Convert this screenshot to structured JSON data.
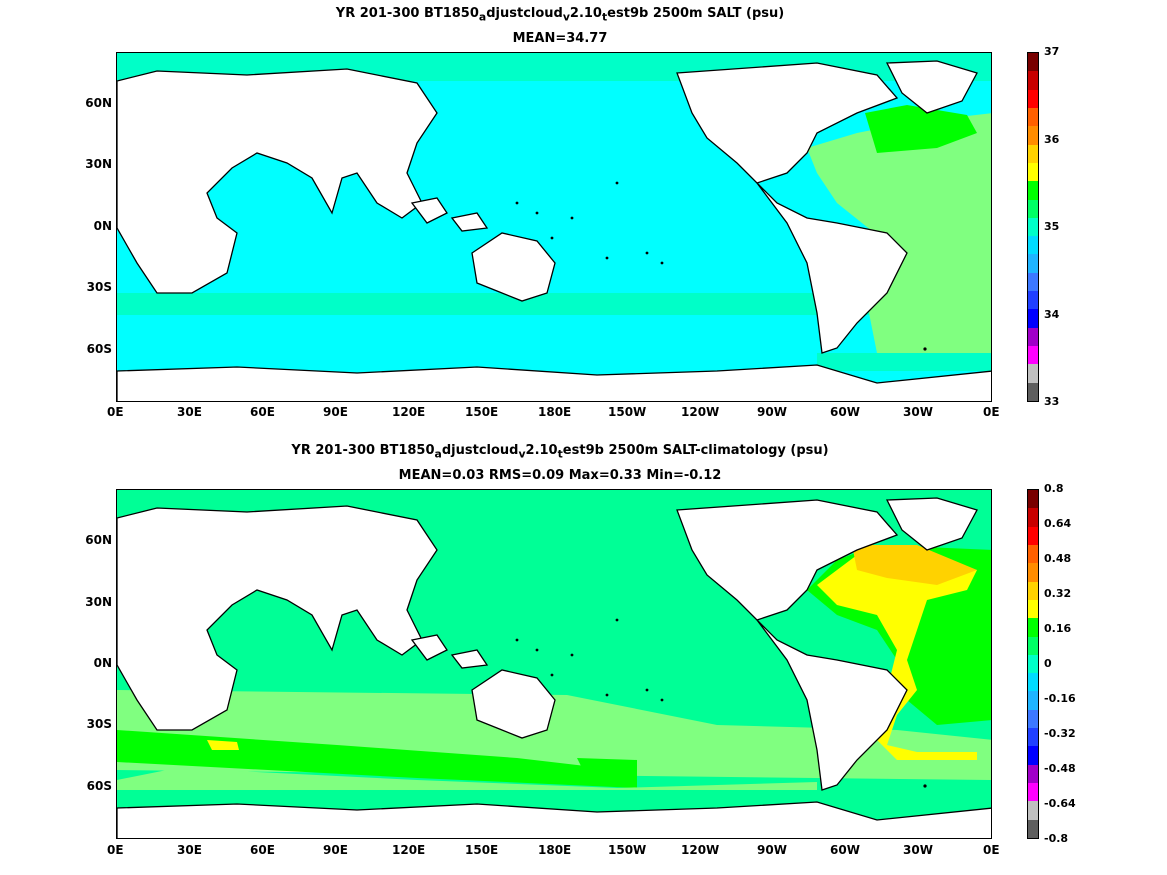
{
  "panel1": {
    "title_line1": "YR 201-300 BT1850",
    "title_sub_a": "a",
    "title_mid1": "djustcloud",
    "title_sub_v": "v",
    "title_mid2": "2.10",
    "title_sub_t": "t",
    "title_end": "est9b 2500m SALT (psu)",
    "title_line2": "MEAN=34.77",
    "colorbar_labels": [
      "37",
      "36",
      "35",
      "34",
      "33"
    ]
  },
  "panel2": {
    "title_line1": "YR 201-300 BT1850",
    "title_sub_a": "a",
    "title_mid1": "djustcloud",
    "title_sub_v": "v",
    "title_mid2": "2.10",
    "title_sub_t": "t",
    "title_end": "est9b 2500m SALT-climatology (psu)",
    "title_line2": "MEAN=0.03   RMS=0.09   Max=0.33   Min=-0.12",
    "colorbar_labels": [
      "0.8",
      "0.64",
      "0.48",
      "0.32",
      "0.16",
      "0",
      "-0.16",
      "-0.32",
      "-0.48",
      "-0.64",
      "-0.8"
    ]
  },
  "axes": {
    "lon_labels": [
      "0E",
      "30E",
      "60E",
      "90E",
      "120E",
      "150E",
      "180E",
      "150W",
      "120W",
      "90W",
      "60W",
      "30W",
      "0E"
    ],
    "lat_labels": [
      "60N",
      "30N",
      "0N",
      "30S",
      "60S"
    ]
  },
  "colorbar_colors": [
    "#5e5e5e",
    "#c0c0c0",
    "#ff00ff",
    "#a000c8",
    "#0000ff",
    "#2040ff",
    "#3c78ff",
    "#1eb4ff",
    "#00dcff",
    "#00ffc8",
    "#00ff64",
    "#00ff00",
    "#ffff00",
    "#ffd200",
    "#ff8c00",
    "#ff6000",
    "#ff0000",
    "#c80000",
    "#780000"
  ]
}
